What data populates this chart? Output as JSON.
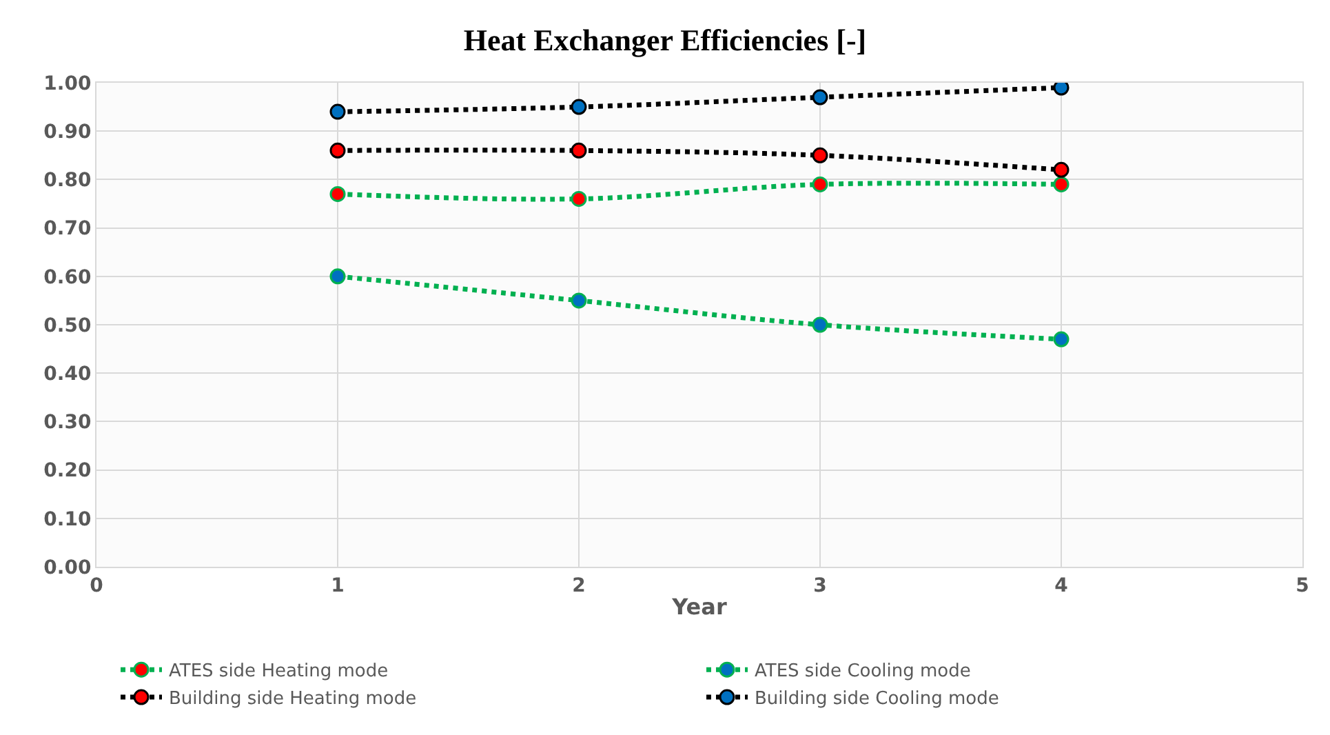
{
  "chart_data": {
    "type": "line",
    "title": "Heat Exchanger Efficiencies [-]",
    "xlabel": "Year",
    "x": [
      1,
      2,
      3,
      4
    ],
    "xlim": [
      0,
      5
    ],
    "xticks": [
      0,
      1,
      2,
      3,
      4,
      5
    ],
    "ylim": [
      0,
      1
    ],
    "yticks": [
      {
        "value": 0,
        "label": "0.00"
      },
      {
        "value": 0.1,
        "label": "0.10"
      },
      {
        "value": 0.2,
        "label": "0.20"
      },
      {
        "value": 0.3,
        "label": "0.30"
      },
      {
        "value": 0.4,
        "label": "0.40"
      },
      {
        "value": 0.5,
        "label": "0.50"
      },
      {
        "value": 0.6,
        "label": "0.60"
      },
      {
        "value": 0.7,
        "label": "0.70"
      },
      {
        "value": 0.8,
        "label": "0.80"
      },
      {
        "value": 0.9,
        "label": "0.90"
      },
      {
        "value": 1,
        "label": "1.00"
      }
    ],
    "grid": true,
    "legend": "bottom",
    "marker": "circle",
    "line_style": "dotted",
    "series": [
      {
        "name": "ATES side Heating mode",
        "color": "#00b050",
        "colors": [
          "#ff0000",
          "#ff0000",
          "#ff0000",
          "#ff0000"
        ],
        "values": [
          0.77,
          0.76,
          0.79,
          0.79
        ]
      },
      {
        "name": "ATES side Cooling mode",
        "color": "#00b050",
        "colors": [
          "#0070c0",
          "#0070c0",
          "#0070c0",
          "#0070c0"
        ],
        "values": [
          0.6,
          0.55,
          0.5,
          0.47
        ]
      },
      {
        "name": "Building side Heating mode",
        "color": "#000000",
        "colors": [
          "#ff0000",
          "#ff0000",
          "#ff0000",
          "#ff0000"
        ],
        "values": [
          0.86,
          0.86,
          0.85,
          0.82
        ]
      },
      {
        "name": "Building side Cooling mode",
        "color": "#000000",
        "colors": [
          "#0070c0",
          "#0070c0",
          "#0070c0",
          "#0070c0"
        ],
        "values": [
          0.94,
          0.95,
          0.97,
          0.99
        ]
      }
    ]
  }
}
